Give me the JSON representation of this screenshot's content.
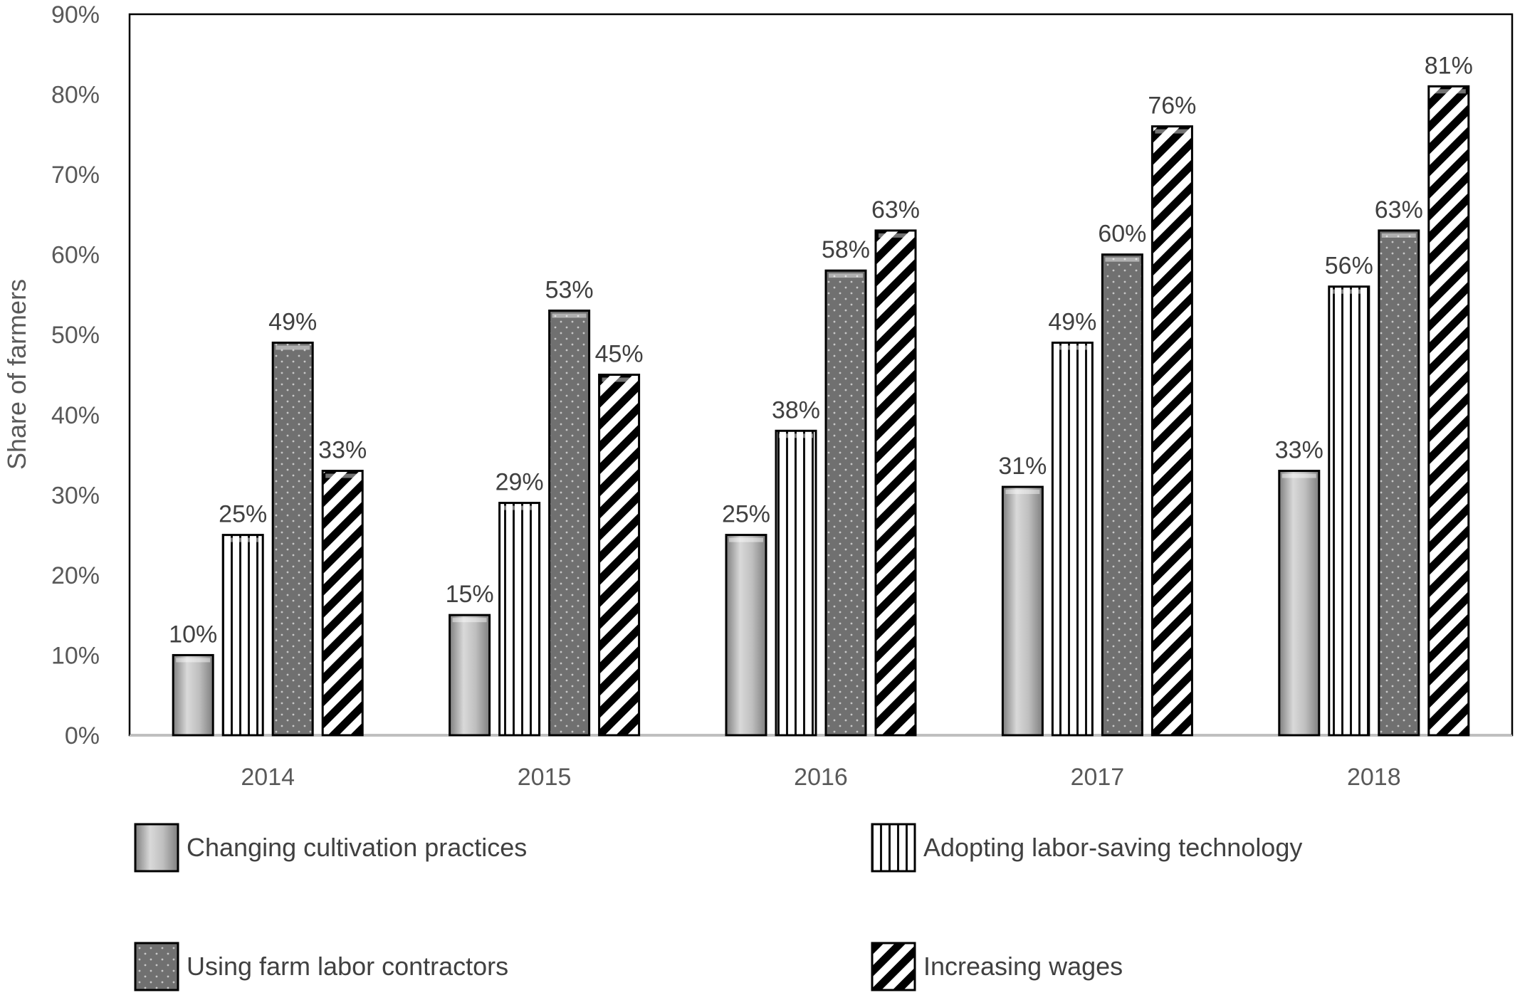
{
  "chart_data": {
    "type": "bar",
    "categories": [
      "2014",
      "2015",
      "2016",
      "2017",
      "2018"
    ],
    "series": [
      {
        "name": "Changing cultivation practices",
        "values": [
          10,
          15,
          25,
          31,
          33
        ],
        "labels": [
          "10%",
          "15%",
          "25%",
          "31%",
          "33%"
        ],
        "pattern": "gradient",
        "color": "#a6a6a6"
      },
      {
        "name": "Adopting labor-saving technology",
        "values": [
          25,
          29,
          38,
          49,
          56
        ],
        "labels": [
          "25%",
          "29%",
          "38%",
          "49%",
          "56%"
        ],
        "pattern": "vertical-stripes",
        "color": "#ffffff"
      },
      {
        "name": "Using farm labor contractors",
        "values": [
          49,
          53,
          58,
          60,
          63
        ],
        "labels": [
          "49%",
          "53%",
          "58%",
          "60%",
          "63%"
        ],
        "pattern": "dots",
        "color": "#6e6e6e"
      },
      {
        "name": "Increasing wages",
        "values": [
          33,
          45,
          63,
          76,
          81
        ],
        "labels": [
          "33%",
          "45%",
          "63%",
          "76%",
          "81%"
        ],
        "pattern": "diagonal-stripes",
        "color": "#000000"
      }
    ],
    "ylabel": "Share of farmers",
    "xlabel": "",
    "ylim": [
      0,
      90
    ],
    "yticks": [
      "0%",
      "10%",
      "20%",
      "30%",
      "40%",
      "50%",
      "60%",
      "70%",
      "80%",
      "90%"
    ],
    "grid": false,
    "legend": "bottom"
  }
}
